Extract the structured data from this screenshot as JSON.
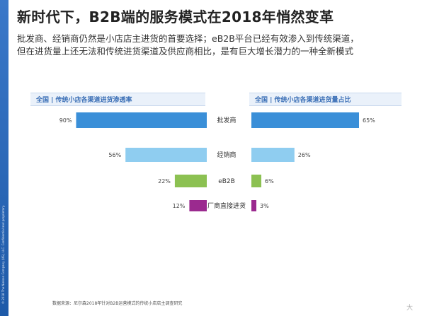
{
  "slide": {
    "title": "新时代下，B2B端的服务模式在2018年悄然变革",
    "subtitle_lines": [
      "批发商、经销商仍然是小店店主进货的首要选择；eB2B平台已经有效渗入到传统渠道，",
      "但在进货量上还无法和传统进货渠道及供应商相比，是有巨大增长潜力的一种全新模式"
    ],
    "source_note": "数据来源：尼尔森2018年针对B2B运营模式的传统小店店主调查研究",
    "watermark": "大"
  },
  "chart_data": [
    {
      "type": "bar",
      "title": "全国 | 传统小店各渠道进货渗透率",
      "categories": [
        "批发商",
        "经销商",
        "eB2B",
        "厂商直接进货"
      ],
      "values": [
        90,
        56,
        22,
        12
      ],
      "value_labels": [
        "90%",
        "56%",
        "22%",
        "12%"
      ],
      "unit": "%",
      "orientation": "horizontal-left",
      "xlim": [
        0,
        100
      ],
      "colors": [
        "#3a8fd8",
        "#8fcdf0",
        "#8cc152",
        "#9b2a8f"
      ]
    },
    {
      "type": "bar",
      "title": "全国 | 传统小店各渠道进货量占比",
      "categories": [
        "批发商",
        "经销商",
        "eB2B",
        "厂商直接进货"
      ],
      "values": [
        65,
        26,
        6,
        3
      ],
      "value_labels": [
        "65%",
        "26%",
        "6%",
        "3%"
      ],
      "unit": "%",
      "orientation": "horizontal-right",
      "xlim": [
        0,
        65
      ],
      "colors": [
        "#3a8fd8",
        "#8fcdf0",
        "#8cc152",
        "#9b2a8f"
      ]
    }
  ]
}
